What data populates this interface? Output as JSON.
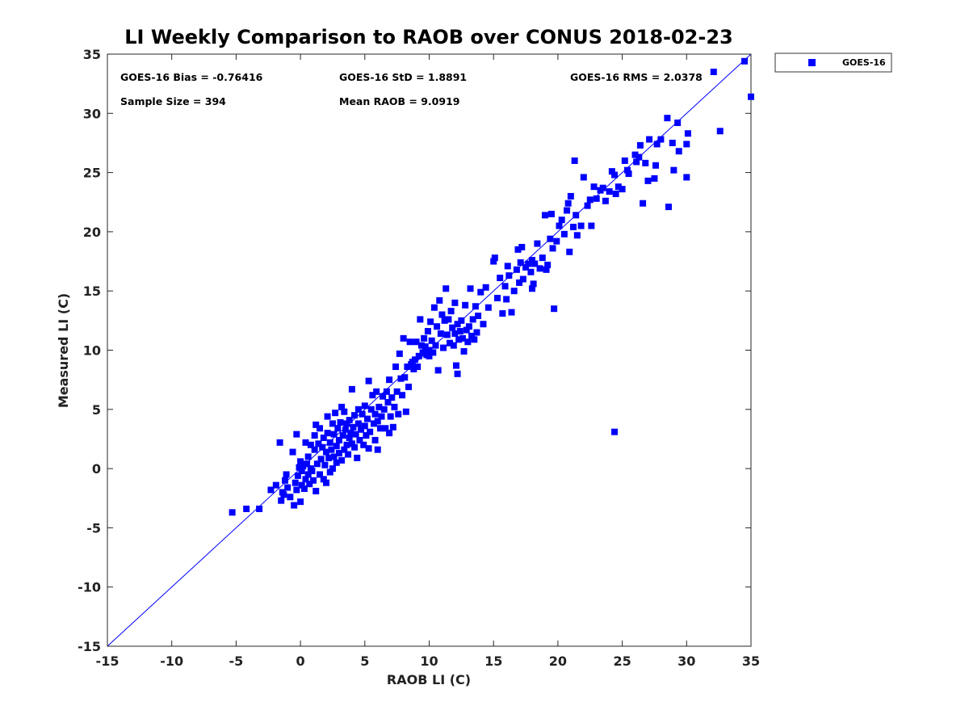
{
  "chart_data": {
    "type": "scatter",
    "title": "LI Weekly Comparison to RAOB over CONUS 2018-02-23",
    "xlabel": "RAOB LI (C)",
    "ylabel": "Measured LI (C)",
    "xlim": [
      -15,
      35
    ],
    "ylim": [
      -15,
      35
    ],
    "xticks": [
      -15,
      -10,
      -5,
      0,
      5,
      10,
      15,
      20,
      25,
      30,
      35
    ],
    "yticks": [
      -15,
      -10,
      -5,
      0,
      5,
      10,
      15,
      20,
      25,
      30,
      35
    ],
    "grid": false,
    "legend": {
      "placement": "outside-top-right",
      "entries": [
        "GOES-16"
      ]
    },
    "stats": {
      "bias": "GOES-16 Bias = -0.76416",
      "std": "GOES-16 StD = 1.8891",
      "rms": "GOES-16 RMS = 2.0378",
      "sample_size": "Sample Size = 394",
      "mean_raob": "Mean RAOB = 9.0919"
    },
    "reference_line": {
      "x": [
        -15,
        35
      ],
      "y": [
        -15,
        35
      ]
    },
    "series": [
      {
        "name": "GOES-16",
        "color": "#0000ff",
        "marker": "square",
        "points": [
          [
            -5.3,
            -3.7
          ],
          [
            -4.2,
            -3.4
          ],
          [
            -3.2,
            -3.4
          ],
          [
            -2.3,
            -1.8
          ],
          [
            -1.9,
            -1.4
          ],
          [
            -1.6,
            2.2
          ],
          [
            -1.5,
            -2.7
          ],
          [
            -1.4,
            -2.0
          ],
          [
            -1.3,
            -2.2
          ],
          [
            -1.2,
            -1.0
          ],
          [
            -1.1,
            -0.5
          ],
          [
            -1.0,
            -1.6
          ],
          [
            -0.8,
            -2.4
          ],
          [
            -0.6,
            1.4
          ],
          [
            -0.5,
            -3.1
          ],
          [
            -0.4,
            -1.2
          ],
          [
            -0.3,
            -1.8
          ],
          [
            -0.3,
            2.9
          ],
          [
            -0.2,
            -0.6
          ],
          [
            -0.1,
            0.1
          ],
          [
            0.0,
            -2.8
          ],
          [
            0.0,
            0.6
          ],
          [
            0.1,
            -1.4
          ],
          [
            0.1,
            -0.2
          ],
          [
            0.2,
            0.2
          ],
          [
            0.3,
            -1.7
          ],
          [
            0.4,
            -0.9
          ],
          [
            0.4,
            2.2
          ],
          [
            0.5,
            0.4
          ],
          [
            0.6,
            -0.5
          ],
          [
            0.6,
            1.0
          ],
          [
            0.7,
            -1.3
          ],
          [
            0.8,
            0.0
          ],
          [
            0.8,
            2.0
          ],
          [
            0.9,
            -0.2
          ],
          [
            1.0,
            -1.0
          ],
          [
            1.1,
            1.6
          ],
          [
            1.1,
            2.8
          ],
          [
            1.2,
            -1.9
          ],
          [
            1.2,
            3.7
          ],
          [
            1.3,
            0.4
          ],
          [
            1.4,
            2.1
          ],
          [
            1.5,
            -0.5
          ],
          [
            1.5,
            3.4
          ],
          [
            1.6,
            0.8
          ],
          [
            1.7,
            1.8
          ],
          [
            1.8,
            -0.9
          ],
          [
            1.8,
            2.6
          ],
          [
            1.9,
            0.3
          ],
          [
            2.0,
            1.4
          ],
          [
            2.0,
            -1.2
          ],
          [
            2.1,
            3.0
          ],
          [
            2.1,
            4.4
          ],
          [
            2.2,
            0.9
          ],
          [
            2.3,
            2.2
          ],
          [
            2.3,
            -0.3
          ],
          [
            2.4,
            1.6
          ],
          [
            2.5,
            3.8
          ],
          [
            2.5,
            0.0
          ],
          [
            2.6,
            2.9
          ],
          [
            2.6,
            1.0
          ],
          [
            2.7,
            4.7
          ],
          [
            2.8,
            1.9
          ],
          [
            2.8,
            0.5
          ],
          [
            2.9,
            3.4
          ],
          [
            3.0,
            2.4
          ],
          [
            3.0,
            1.3
          ],
          [
            3.1,
            3.9
          ],
          [
            3.2,
            5.2
          ],
          [
            3.2,
            0.7
          ],
          [
            3.3,
            2.8
          ],
          [
            3.4,
            1.6
          ],
          [
            3.4,
            4.8
          ],
          [
            3.5,
            3.3
          ],
          [
            3.6,
            2.0
          ],
          [
            3.6,
            3.8
          ],
          [
            3.7,
            1.2
          ],
          [
            3.8,
            2.6
          ],
          [
            3.8,
            4.1
          ],
          [
            3.9,
            3.0
          ],
          [
            4.0,
            2.1
          ],
          [
            4.0,
            6.7
          ],
          [
            4.1,
            3.5
          ],
          [
            4.2,
            1.8
          ],
          [
            4.2,
            4.5
          ],
          [
            4.3,
            2.9
          ],
          [
            4.4,
            0.9
          ],
          [
            4.5,
            3.8
          ],
          [
            4.5,
            5.0
          ],
          [
            4.6,
            2.4
          ],
          [
            4.7,
            3.3
          ],
          [
            4.8,
            4.6
          ],
          [
            4.9,
            2.0
          ],
          [
            5.0,
            3.6
          ],
          [
            5.0,
            5.3
          ],
          [
            5.1,
            2.8
          ],
          [
            5.2,
            4.2
          ],
          [
            5.3,
            7.4
          ],
          [
            5.3,
            1.7
          ],
          [
            5.4,
            3.1
          ],
          [
            5.5,
            5.0
          ],
          [
            5.6,
            6.2
          ],
          [
            5.7,
            3.8
          ],
          [
            5.8,
            4.6
          ],
          [
            5.8,
            2.4
          ],
          [
            5.9,
            6.5
          ],
          [
            6.0,
            1.6
          ],
          [
            6.0,
            4.0
          ],
          [
            6.1,
            5.2
          ],
          [
            6.2,
            3.4
          ],
          [
            6.3,
            4.4
          ],
          [
            6.4,
            6.1
          ],
          [
            6.5,
            5.0
          ],
          [
            6.6,
            3.4
          ],
          [
            6.7,
            6.5
          ],
          [
            6.8,
            5.6
          ],
          [
            6.9,
            3.0
          ],
          [
            6.9,
            7.5
          ],
          [
            7.0,
            4.4
          ],
          [
            7.1,
            6.0
          ],
          [
            7.2,
            3.5
          ],
          [
            7.3,
            5.2
          ],
          [
            7.4,
            8.6
          ],
          [
            7.5,
            6.5
          ],
          [
            7.6,
            4.6
          ],
          [
            7.7,
            9.7
          ],
          [
            7.8,
            7.6
          ],
          [
            7.9,
            6.2
          ],
          [
            8.0,
            11.0
          ],
          [
            8.1,
            7.7
          ],
          [
            8.2,
            4.8
          ],
          [
            8.3,
            8.6
          ],
          [
            8.4,
            6.9
          ],
          [
            8.5,
            10.7
          ],
          [
            8.6,
            8.8
          ],
          [
            8.7,
            9.0
          ],
          [
            8.8,
            8.4
          ],
          [
            8.9,
            9.2
          ],
          [
            9.0,
            10.7
          ],
          [
            9.1,
            8.6
          ],
          [
            9.2,
            9.5
          ],
          [
            9.3,
            12.6
          ],
          [
            9.4,
            10.4
          ],
          [
            9.5,
            9.8
          ],
          [
            9.6,
            11.0
          ],
          [
            9.7,
            10.3
          ],
          [
            9.8,
            9.6
          ],
          [
            9.9,
            11.6
          ],
          [
            10.0,
            10.0
          ],
          [
            10.0,
            9.5
          ],
          [
            10.1,
            12.4
          ],
          [
            10.2,
            10.8
          ],
          [
            10.3,
            9.8
          ],
          [
            10.4,
            13.6
          ],
          [
            10.5,
            10.4
          ],
          [
            10.6,
            12.0
          ],
          [
            10.7,
            8.3
          ],
          [
            10.8,
            14.2
          ],
          [
            10.9,
            11.4
          ],
          [
            11.0,
            13.0
          ],
          [
            11.1,
            10.2
          ],
          [
            11.2,
            12.5
          ],
          [
            11.3,
            15.2
          ],
          [
            11.4,
            11.3
          ],
          [
            11.5,
            12.6
          ],
          [
            11.6,
            10.6
          ],
          [
            11.7,
            13.3
          ],
          [
            11.8,
            11.9
          ],
          [
            11.9,
            10.4
          ],
          [
            12.0,
            14.0
          ],
          [
            12.0,
            11.4
          ],
          [
            12.1,
            8.7
          ],
          [
            12.2,
            12.2
          ],
          [
            12.2,
            8.0
          ],
          [
            12.3,
            10.9
          ],
          [
            12.4,
            11.6
          ],
          [
            12.5,
            12.5
          ],
          [
            12.6,
            11.0
          ],
          [
            12.7,
            9.9
          ],
          [
            12.8,
            13.8
          ],
          [
            12.9,
            11.7
          ],
          [
            13.0,
            10.7
          ],
          [
            13.1,
            12.0
          ],
          [
            13.2,
            15.2
          ],
          [
            13.3,
            11.2
          ],
          [
            13.4,
            12.6
          ],
          [
            13.5,
            10.9
          ],
          [
            13.6,
            13.7
          ],
          [
            13.7,
            11.5
          ],
          [
            13.8,
            12.9
          ],
          [
            14.0,
            14.9
          ],
          [
            14.2,
            12.2
          ],
          [
            14.4,
            15.3
          ],
          [
            14.6,
            13.6
          ],
          [
            15.0,
            17.5
          ],
          [
            15.1,
            17.8
          ],
          [
            15.3,
            14.4
          ],
          [
            15.5,
            16.1
          ],
          [
            15.7,
            13.1
          ],
          [
            15.9,
            15.4
          ],
          [
            16.0,
            14.3
          ],
          [
            16.1,
            17.1
          ],
          [
            16.2,
            16.3
          ],
          [
            16.4,
            13.2
          ],
          [
            16.6,
            15.0
          ],
          [
            16.8,
            16.8
          ],
          [
            16.9,
            18.5
          ],
          [
            17.0,
            15.7
          ],
          [
            17.1,
            17.4
          ],
          [
            17.2,
            18.7
          ],
          [
            17.3,
            16.0
          ],
          [
            17.5,
            17.0
          ],
          [
            17.7,
            17.3
          ],
          [
            17.9,
            16.6
          ],
          [
            18.0,
            15.2
          ],
          [
            18.0,
            17.6
          ],
          [
            18.1,
            15.6
          ],
          [
            18.2,
            17.3
          ],
          [
            18.4,
            19.0
          ],
          [
            18.6,
            16.9
          ],
          [
            18.8,
            17.8
          ],
          [
            19.0,
            21.4
          ],
          [
            19.1,
            16.8
          ],
          [
            19.2,
            17.2
          ],
          [
            19.4,
            19.4
          ],
          [
            19.5,
            21.5
          ],
          [
            19.6,
            18.6
          ],
          [
            19.7,
            13.5
          ],
          [
            19.9,
            19.2
          ],
          [
            20.1,
            20.5
          ],
          [
            20.3,
            21.0
          ],
          [
            20.5,
            19.8
          ],
          [
            20.7,
            21.8
          ],
          [
            20.8,
            22.4
          ],
          [
            20.9,
            18.3
          ],
          [
            21.0,
            23.0
          ],
          [
            21.2,
            20.4
          ],
          [
            21.3,
            26.0
          ],
          [
            21.4,
            21.4
          ],
          [
            21.5,
            19.7
          ],
          [
            21.8,
            20.5
          ],
          [
            22.0,
            24.6
          ],
          [
            22.3,
            22.2
          ],
          [
            22.5,
            22.7
          ],
          [
            22.6,
            20.5
          ],
          [
            22.8,
            23.8
          ],
          [
            23.0,
            22.8
          ],
          [
            23.3,
            23.5
          ],
          [
            23.5,
            23.7
          ],
          [
            23.7,
            22.6
          ],
          [
            24.0,
            23.4
          ],
          [
            24.2,
            25.1
          ],
          [
            24.4,
            24.8
          ],
          [
            24.4,
            3.1
          ],
          [
            24.5,
            23.2
          ],
          [
            24.7,
            23.8
          ],
          [
            25.0,
            23.6
          ],
          [
            25.2,
            26.0
          ],
          [
            25.4,
            25.2
          ],
          [
            25.5,
            24.9
          ],
          [
            26.0,
            26.5
          ],
          [
            26.1,
            25.9
          ],
          [
            26.3,
            26.3
          ],
          [
            26.4,
            27.3
          ],
          [
            26.6,
            22.4
          ],
          [
            26.8,
            25.8
          ],
          [
            27.0,
            24.3
          ],
          [
            27.1,
            27.8
          ],
          [
            27.5,
            24.5
          ],
          [
            27.6,
            25.6
          ],
          [
            27.7,
            27.4
          ],
          [
            28.0,
            27.8
          ],
          [
            28.5,
            29.6
          ],
          [
            28.6,
            22.1
          ],
          [
            28.9,
            27.5
          ],
          [
            29.0,
            25.2
          ],
          [
            29.3,
            29.2
          ],
          [
            29.4,
            26.8
          ],
          [
            30.0,
            27.4
          ],
          [
            30.0,
            24.6
          ],
          [
            30.1,
            28.3
          ],
          [
            32.1,
            33.5
          ],
          [
            32.6,
            28.5
          ],
          [
            34.5,
            34.4
          ],
          [
            35.0,
            31.4
          ]
        ]
      }
    ]
  }
}
